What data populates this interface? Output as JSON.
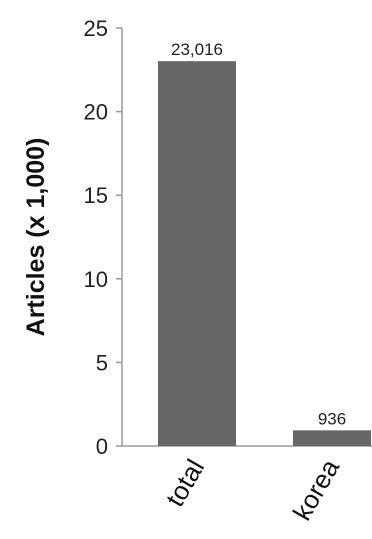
{
  "chart_data": {
    "type": "bar",
    "categories": [
      "total",
      "korea"
    ],
    "values": [
      23.016,
      0.936
    ],
    "data_labels": [
      "23,016",
      "936"
    ],
    "ylabel": "Articles (x 1,000)",
    "xlabel": "",
    "ylim": [
      0,
      25
    ],
    "yticks": [
      "0",
      "5",
      "10",
      "15",
      "20",
      "25"
    ],
    "grid": false,
    "legend": "none",
    "bar_color": "#666666",
    "axis_color": "#999999"
  }
}
